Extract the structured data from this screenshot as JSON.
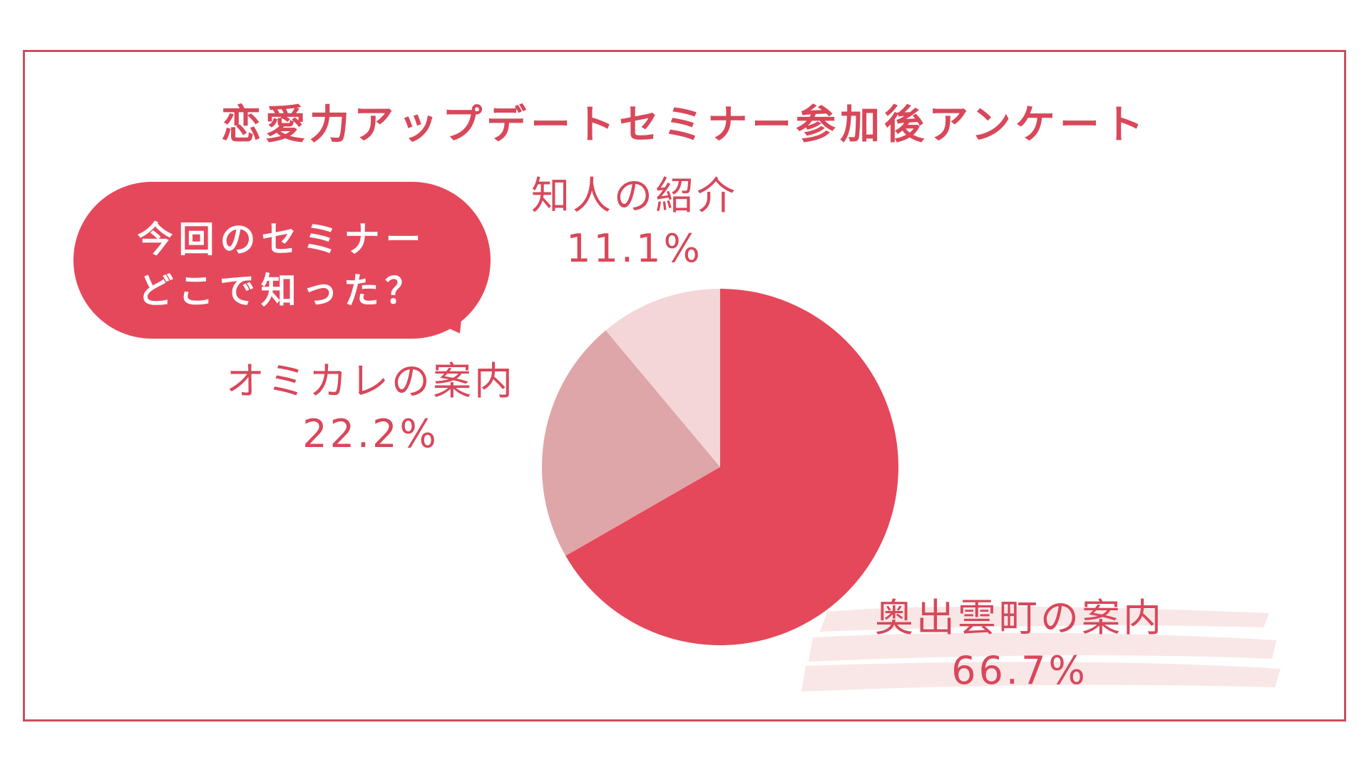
{
  "title": "恋愛力アップデートセミナー参加後アンケート",
  "question": {
    "line1": "今回のセミナー",
    "line2": "どこで知った？"
  },
  "colors": {
    "frame": "#c8505f",
    "accent": "#e5485b",
    "text": "#d8485a",
    "slice_main": "#e5485b",
    "slice_mid": "#dfa6aa",
    "slice_light": "#f4d6d8",
    "brush": "#f9e6e6"
  },
  "chart_data": {
    "type": "pie",
    "title": "恋愛力アップデートセミナー参加後アンケート",
    "slices": [
      {
        "label": "奥出雲町の案内",
        "value": 66.7,
        "display": "66.7%",
        "color": "#e5485b"
      },
      {
        "label": "オミカレの案内",
        "value": 22.2,
        "display": "22.2%",
        "color": "#dfa6aa"
      },
      {
        "label": "知人の紹介",
        "value": 11.1,
        "display": "11.1%",
        "color": "#f4d6d8"
      }
    ],
    "start": "12 o'clock",
    "direction": "clockwise",
    "legend": "none"
  }
}
